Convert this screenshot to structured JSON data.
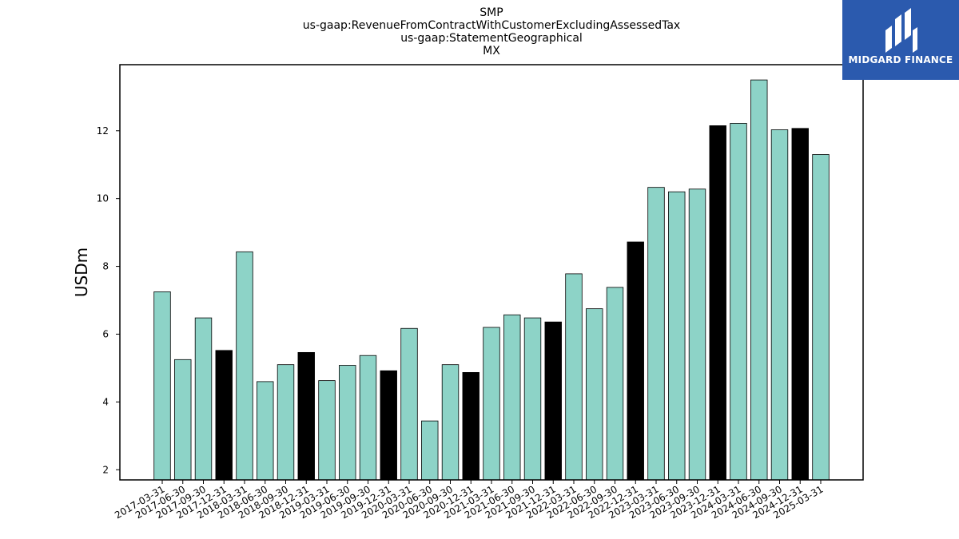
{
  "chart_data": {
    "type": "bar",
    "title_lines": [
      "SMP",
      "us-gaap:RevenueFromContractWithCustomerExcludingAssessedTax",
      "us-gaap:StatementGeographical",
      "MX"
    ],
    "xlabel": "",
    "ylabel": "USDm",
    "ylim": [
      1.7,
      13.95
    ],
    "yticks": [
      2,
      4,
      6,
      8,
      10,
      12
    ],
    "grid": false,
    "colors": {
      "quarter": "#8dd3c7",
      "year_end": "#000000",
      "edge": "#000000"
    },
    "categories": [
      "2017-03-31",
      "2017-06-30",
      "2017-09-30",
      "2017-12-31",
      "2018-03-31",
      "2018-06-30",
      "2018-09-30",
      "2018-12-31",
      "2019-03-31",
      "2019-06-30",
      "2019-09-30",
      "2019-12-31",
      "2020-03-31",
      "2020-06-30",
      "2020-09-30",
      "2020-12-31",
      "2021-03-31",
      "2021-06-30",
      "2021-09-30",
      "2021-12-31",
      "2022-03-31",
      "2022-06-30",
      "2022-09-30",
      "2022-12-31",
      "2023-03-31",
      "2023-06-30",
      "2023-09-30",
      "2023-12-31",
      "2024-03-31",
      "2024-06-30",
      "2024-09-30",
      "2024-12-31",
      "2025-03-31"
    ],
    "values": [
      7.25,
      5.25,
      6.48,
      5.52,
      8.43,
      4.6,
      5.1,
      5.46,
      4.63,
      5.08,
      5.37,
      4.92,
      6.17,
      3.44,
      5.1,
      4.87,
      6.2,
      6.57,
      6.48,
      6.36,
      7.78,
      6.75,
      7.38,
      8.72,
      10.33,
      10.2,
      10.28,
      12.15,
      12.22,
      13.5,
      12.03,
      12.07,
      11.3
    ]
  },
  "logo": {
    "text": "MIDGARD FINANCE",
    "bg": "#2b5aae"
  }
}
